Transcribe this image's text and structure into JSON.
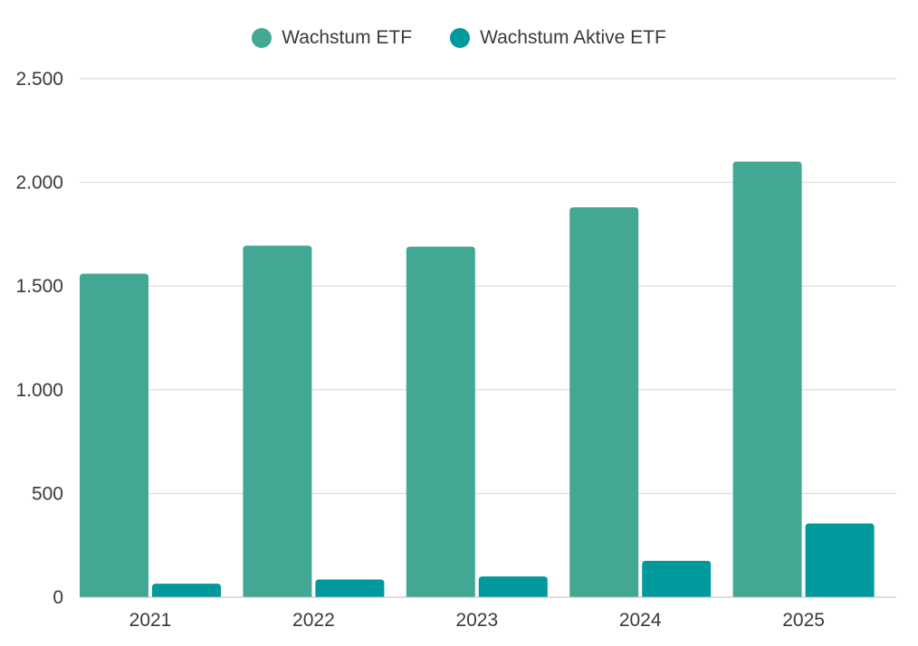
{
  "chart_data": {
    "type": "bar",
    "categories": [
      "2021",
      "2022",
      "2023",
      "2024",
      "2025"
    ],
    "series": [
      {
        "name": "Wachstum ETF",
        "values": [
          1560,
          1695,
          1690,
          1880,
          2100
        ],
        "color": "#43a893"
      },
      {
        "name": "Wachstum Aktive ETF",
        "values": [
          65,
          85,
          100,
          175,
          355
        ],
        "color": "#00999c"
      }
    ],
    "ylim": [
      0,
      2500
    ],
    "yticks": [
      0,
      500,
      1000,
      1500,
      2000,
      2500
    ],
    "ytick_labels": [
      "0",
      "500",
      "1.000",
      "1.500",
      "2.000",
      "2.500"
    ],
    "grid": true,
    "legend_position": "top-center",
    "title": "",
    "xlabel": "",
    "ylabel": ""
  }
}
